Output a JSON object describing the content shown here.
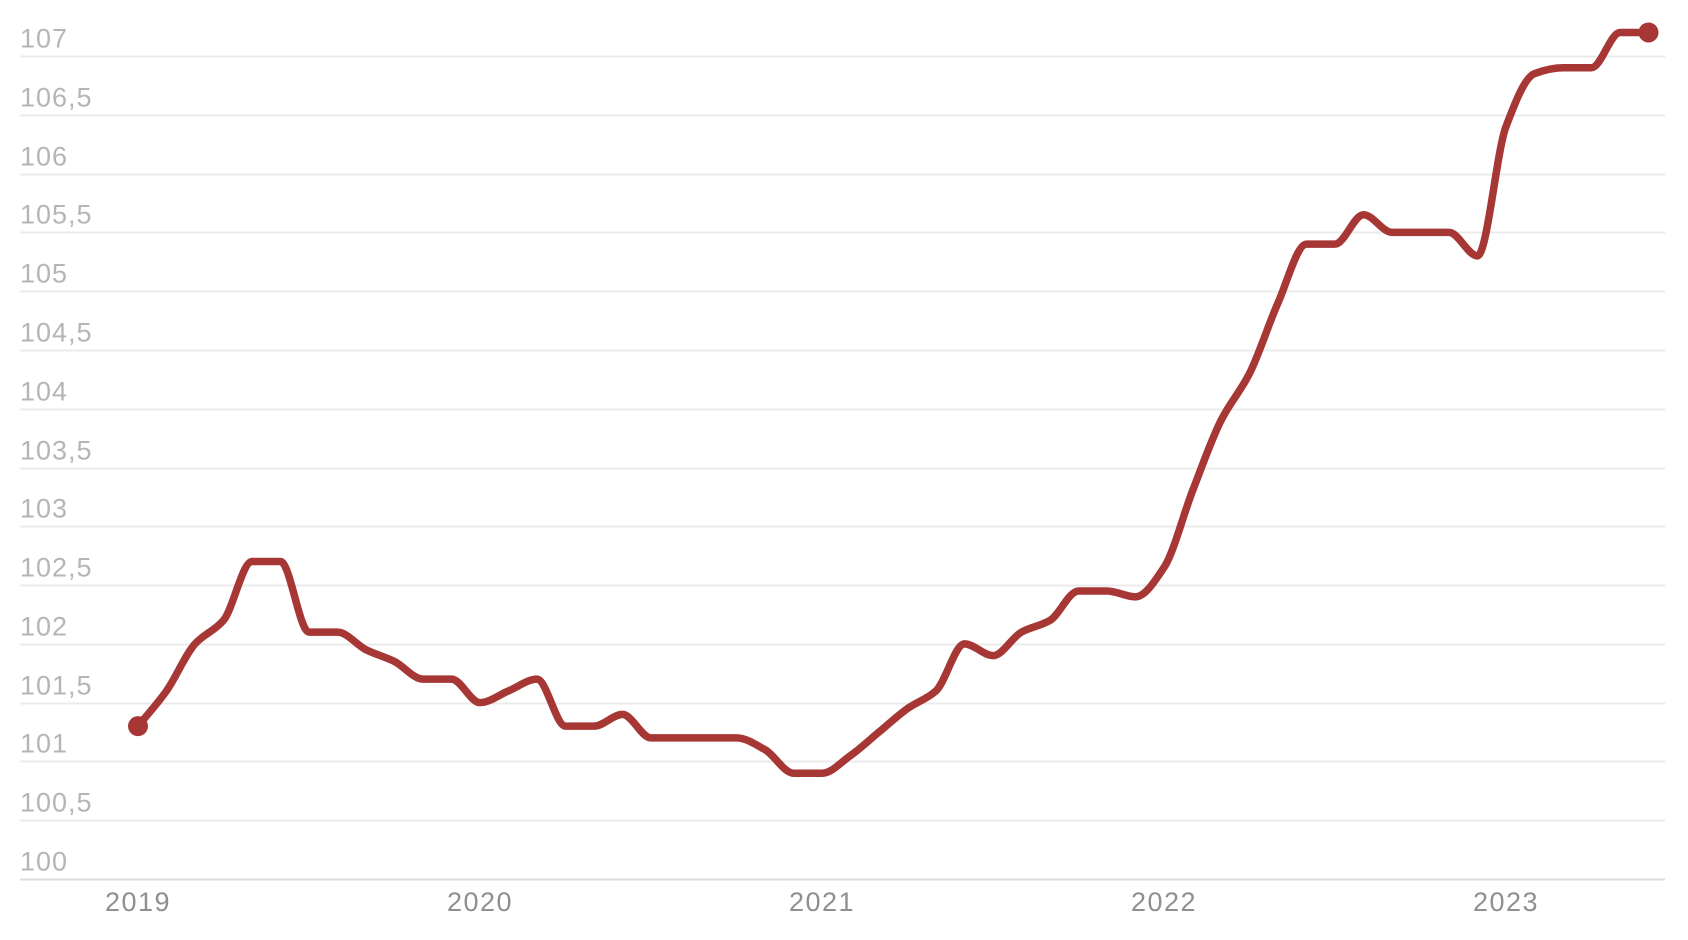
{
  "chart_data": {
    "type": "line",
    "title": "",
    "xlabel": "",
    "ylabel": "",
    "x": [
      "2019-01",
      "2019-02",
      "2019-03",
      "2019-04",
      "2019-05",
      "2019-06",
      "2019-07",
      "2019-08",
      "2019-09",
      "2019-10",
      "2019-11",
      "2019-12",
      "2020-01",
      "2020-02",
      "2020-03",
      "2020-04",
      "2020-05",
      "2020-06",
      "2020-07",
      "2020-08",
      "2020-09",
      "2020-10",
      "2020-11",
      "2020-12",
      "2021-01",
      "2021-02",
      "2021-03",
      "2021-04",
      "2021-05",
      "2021-06",
      "2021-07",
      "2021-08",
      "2021-09",
      "2021-10",
      "2021-11",
      "2021-12",
      "2022-01",
      "2022-02",
      "2022-03",
      "2022-04",
      "2022-05",
      "2022-06",
      "2022-07",
      "2022-08",
      "2022-09",
      "2022-10",
      "2022-11",
      "2022-12",
      "2023-01",
      "2023-02",
      "2023-03",
      "2023-04",
      "2023-05",
      "2023-06"
    ],
    "series": [
      {
        "name": "index",
        "values": [
          101.3,
          101.6,
          102.0,
          102.2,
          102.7,
          102.7,
          102.1,
          102.1,
          101.95,
          101.85,
          101.7,
          101.7,
          101.5,
          101.6,
          101.7,
          101.3,
          101.3,
          101.4,
          101.2,
          101.2,
          101.2,
          101.2,
          101.1,
          100.9,
          100.9,
          101.05,
          101.25,
          101.45,
          101.6,
          102.0,
          101.9,
          102.1,
          102.2,
          102.45,
          102.45,
          102.4,
          102.65,
          103.3,
          103.9,
          104.3,
          104.9,
          105.4,
          105.4,
          105.65,
          105.5,
          105.5,
          105.5,
          105.3,
          106.4,
          106.85,
          106.9,
          106.9,
          107.2,
          107.2
        ]
      }
    ],
    "ylim": [
      100,
      107.4
    ],
    "y_tick_step": 0.5,
    "decimal_separator": ",",
    "y_ticks": [
      {
        "value": 107,
        "label": "107"
      },
      {
        "value": 106.5,
        "label": "106,5"
      },
      {
        "value": 106,
        "label": "106"
      },
      {
        "value": 105.5,
        "label": "105,5"
      },
      {
        "value": 105,
        "label": "105"
      },
      {
        "value": 104.5,
        "label": "104,5"
      },
      {
        "value": 104,
        "label": "104"
      },
      {
        "value": 103.5,
        "label": "103,5"
      },
      {
        "value": 103,
        "label": "103"
      },
      {
        "value": 102.5,
        "label": "102,5"
      },
      {
        "value": 102,
        "label": "102"
      },
      {
        "value": 101.5,
        "label": "101,5"
      },
      {
        "value": 101,
        "label": "101"
      },
      {
        "value": 100.5,
        "label": "100,5"
      },
      {
        "value": 100,
        "label": "100"
      }
    ],
    "x_ticks": [
      {
        "label": "2019",
        "month_index": 0
      },
      {
        "label": "2020",
        "month_index": 12
      },
      {
        "label": "2021",
        "month_index": 24
      },
      {
        "label": "2022",
        "month_index": 36
      },
      {
        "label": "2023",
        "month_index": 48
      }
    ],
    "grid": "horizontal",
    "legend": "none",
    "markers": "first-last",
    "curve": "monotone",
    "colors": {
      "line": "#A63734",
      "marker": "#A63734",
      "gridline": "#EBEBEB",
      "axis_line": "#DCDCDC",
      "y_label": "#B5B5B5",
      "x_label": "#8F8F8F",
      "background": "#FFFFFF"
    }
  }
}
